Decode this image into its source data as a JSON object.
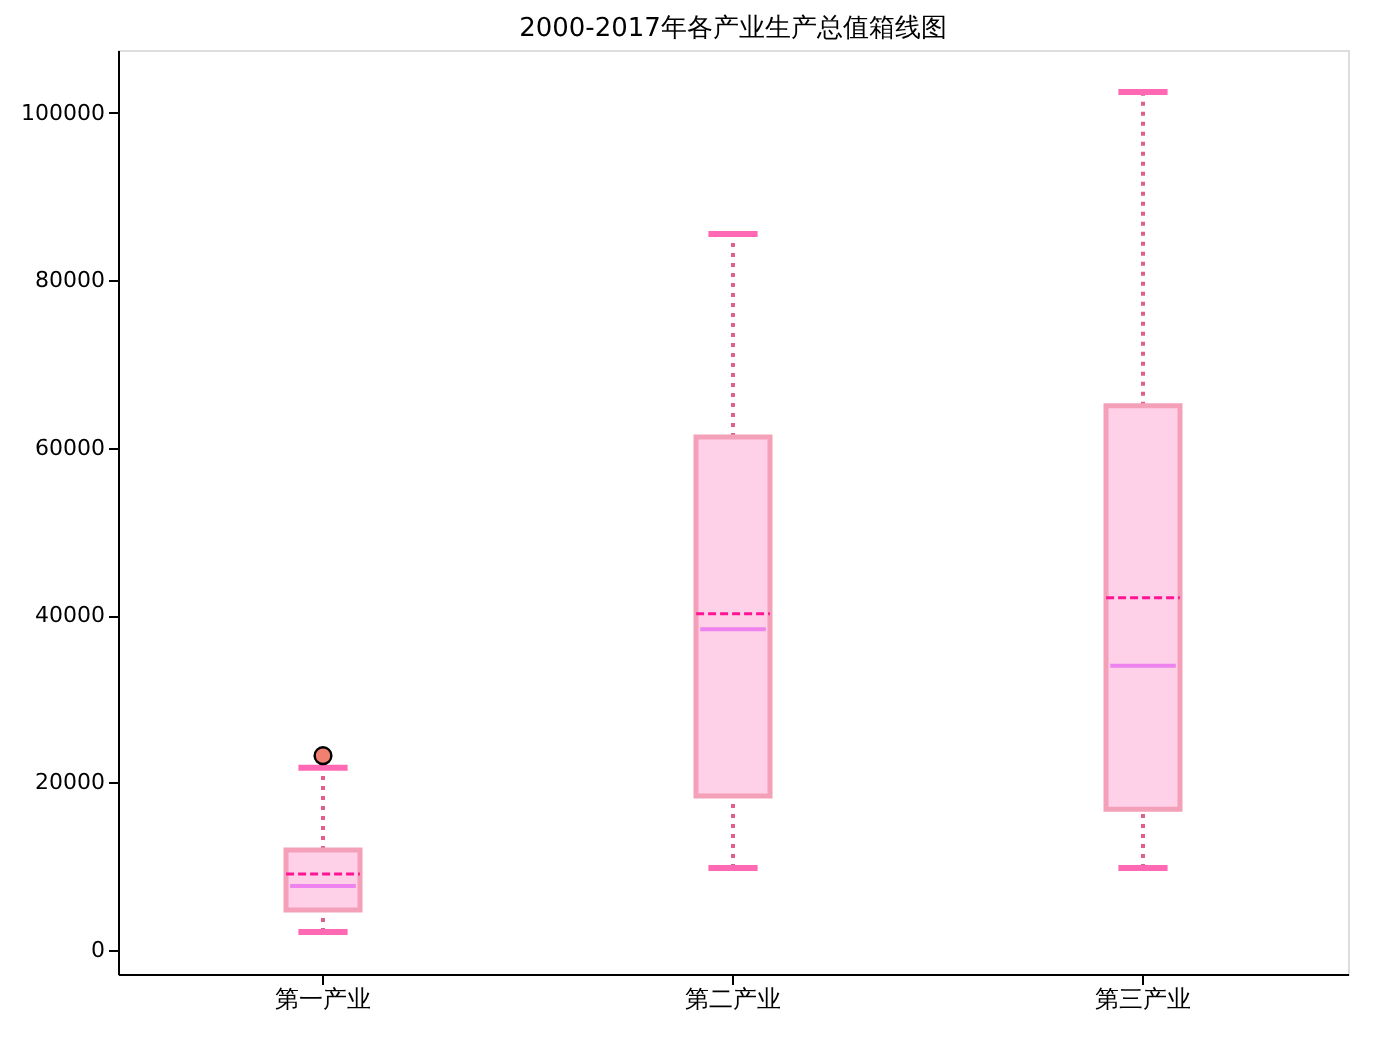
{
  "chart_data": {
    "type": "box",
    "title": "2000-2017年各产业生产总值箱线图",
    "categories": [
      "第一产业",
      "第二产业",
      "第三产业"
    ],
    "boxes": [
      {
        "low": 2150,
        "q1": 4780,
        "median": 7650,
        "q3": 11950,
        "high": 21750,
        "mean": 9080,
        "outliers": [
          23200
        ]
      },
      {
        "low": 9800,
        "q1": 18400,
        "median": 38300,
        "q3": 61250,
        "high": 85500,
        "mean": 40150
      },
      {
        "low": 9800,
        "q1": 16800,
        "median": 33940,
        "q3": 65000,
        "high": 102450,
        "mean": 42070
      }
    ],
    "color": "#ffd1e8",
    "ylim": [
      -2870,
      107470
    ],
    "yticks": [
      0,
      20000,
      40000,
      60000,
      80000,
      100000
    ],
    "grid": false
  }
}
